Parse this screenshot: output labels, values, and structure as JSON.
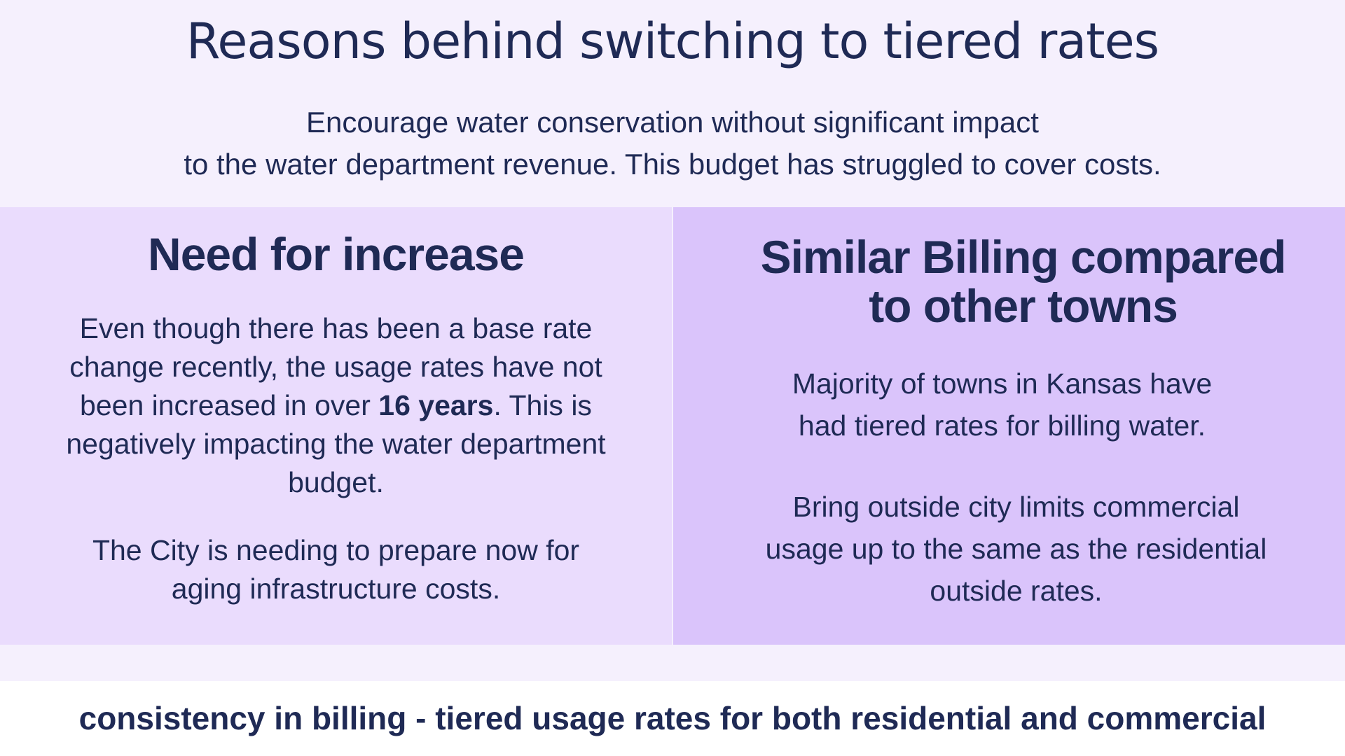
{
  "title": "Reasons behind switching to tiered rates",
  "subtitle": {
    "line1": "Encourage water conservation without significant impact",
    "line2": "to the water department revenue. This budget has struggled to cover costs."
  },
  "left_panel": {
    "heading": "Need for increase",
    "para1_before": "Even though there has been a base rate change recently, the usage rates have not been increased in over ",
    "para1_bold": "16 years",
    "para1_after": ". This is negatively impacting the water department budget.",
    "para2": "The City is needing to prepare now for aging infrastructure costs."
  },
  "right_panel": {
    "heading_line1": "Similar Billing compared",
    "heading_line2": "to other towns",
    "para1": "Majority of towns in Kansas have had tiered rates for billing water.",
    "para2": "Bring outside city limits commercial usage up to the same as the residential outside rates."
  },
  "footer": "consistency in billing - tiered usage rates for both residential and commercial",
  "colors": {
    "background": "#f5f0fd",
    "left_panel": "#eadcfd",
    "right_panel": "#dac4fb",
    "text": "#1f2a55"
  }
}
